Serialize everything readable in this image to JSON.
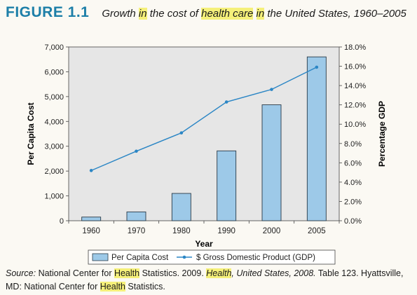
{
  "figure": {
    "label": "FIGURE 1.1",
    "caption_parts": [
      {
        "text": "Growth ",
        "hl": false
      },
      {
        "text": "in",
        "hl": true
      },
      {
        "text": " the cost of ",
        "hl": false
      },
      {
        "text": "health care",
        "hl": true
      },
      {
        "text": " ",
        "hl": false
      },
      {
        "text": "in",
        "hl": true
      },
      {
        "text": " the United States, 1960–2005",
        "hl": false
      }
    ]
  },
  "source": {
    "label": "Source:",
    "parts": [
      {
        "text": " National Center for ",
        "hl": false,
        "it": false
      },
      {
        "text": "Health",
        "hl": true,
        "it": false
      },
      {
        "text": " Statistics. 2009. ",
        "hl": false,
        "it": false
      },
      {
        "text": "Health",
        "hl": true,
        "it": true
      },
      {
        "text": ", United States, 2008.",
        "hl": false,
        "it": true
      },
      {
        "text": " Table 123. Hyattsville, MD: National Center for ",
        "hl": false,
        "it": false
      },
      {
        "text": "Health",
        "hl": true,
        "it": false
      },
      {
        "text": " Statistics.",
        "hl": false,
        "it": false
      }
    ]
  },
  "colors": {
    "bar_fill": "#9dc9e8",
    "bar_stroke": "#2a3a47",
    "line": "#2b86c5",
    "plot_bg": "#e6e6e6",
    "axis": "#444444"
  },
  "chart_data": {
    "type": "bar",
    "categories": [
      "1960",
      "1970",
      "1980",
      "1990",
      "2000",
      "2005"
    ],
    "xlabel": "Year",
    "ylabel": "Per Capita Cost",
    "y2label": "Percentage GDP",
    "ylim": [
      0,
      7000
    ],
    "y2lim": [
      0,
      18
    ],
    "yticks": [
      "0",
      "1,000",
      "2,000",
      "3,000",
      "4,000",
      "5,000",
      "6,000",
      "7,000"
    ],
    "y2ticks": [
      "0.0%",
      "2.0%",
      "4.0%",
      "6.0%",
      "8.0%",
      "10.0%",
      "12.0%",
      "14.0%",
      "16.0%",
      "18.0%"
    ],
    "grid": false,
    "legend": "bottom-center",
    "series": [
      {
        "name": "Per Capita Cost",
        "type": "bar",
        "axis": "left",
        "values": [
          148,
          356,
          1100,
          2814,
          4670,
          6600
        ]
      },
      {
        "name": "$ Gross Domestic Product (GDP)",
        "type": "line",
        "axis": "right",
        "values": [
          5.2,
          7.2,
          9.1,
          12.3,
          13.6,
          15.9
        ]
      }
    ]
  }
}
